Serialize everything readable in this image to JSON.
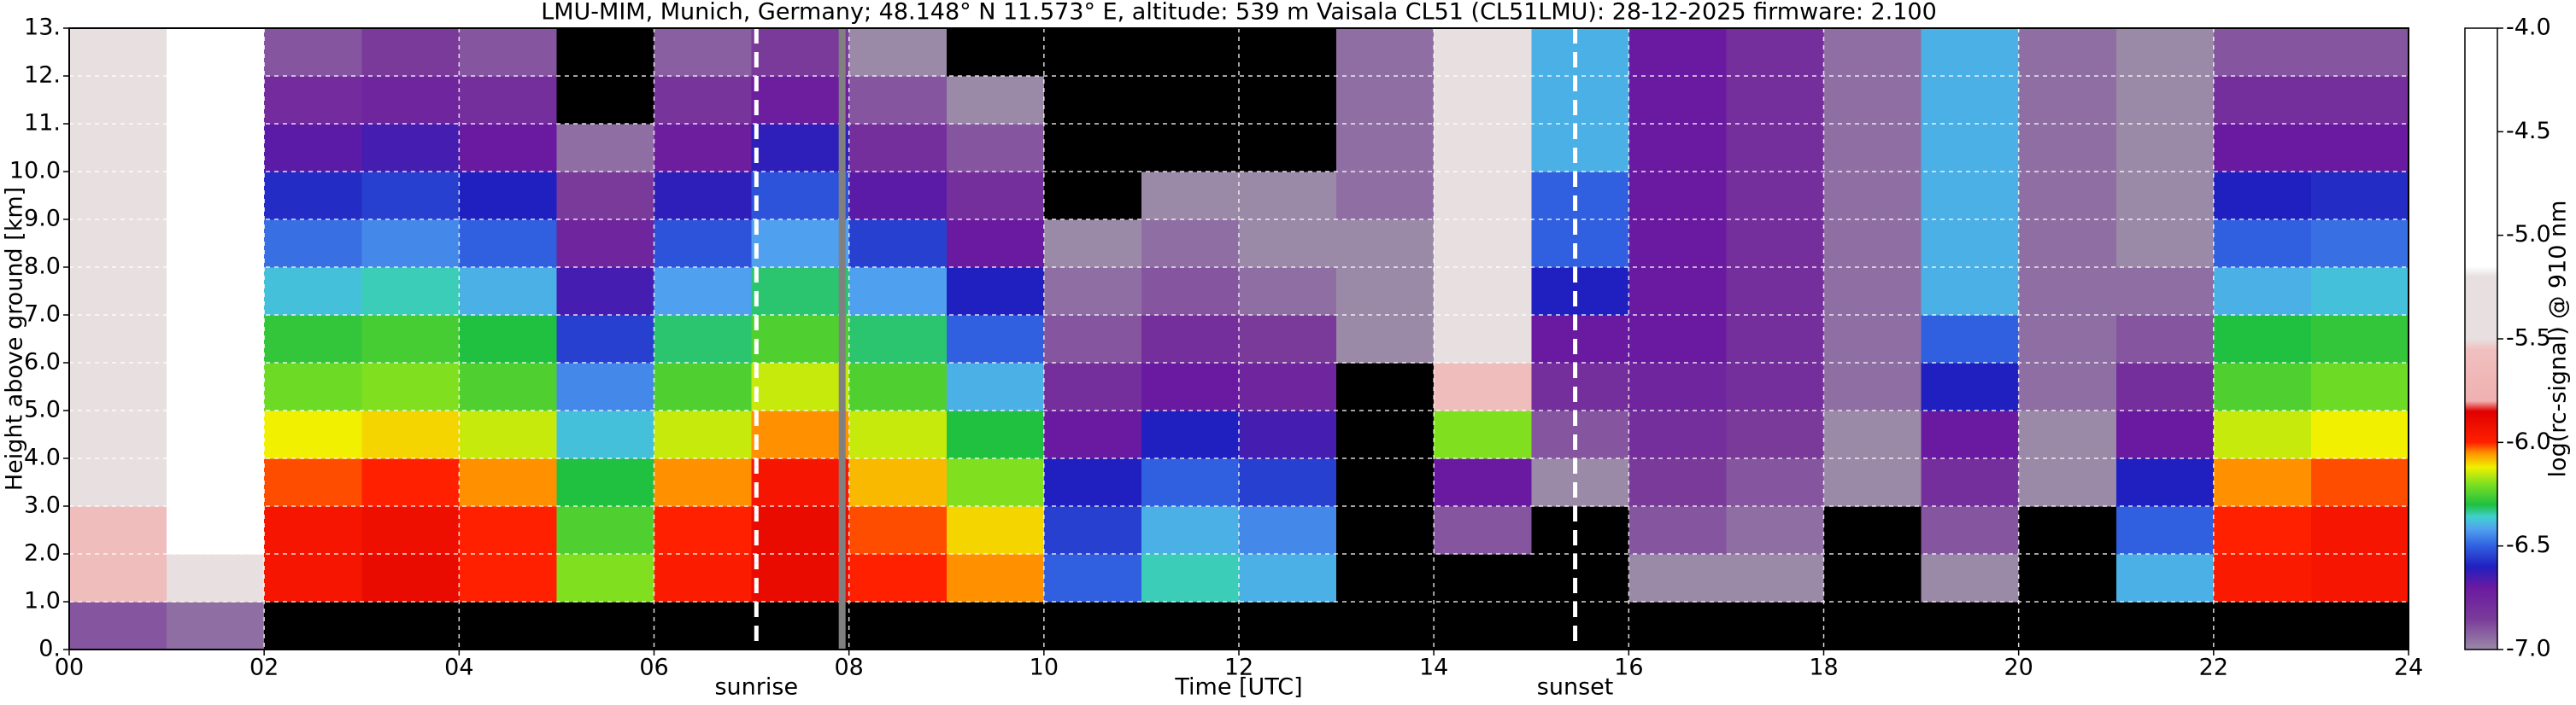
{
  "chart_data": {
    "type": "heatmap",
    "title": "LMU-MIM, Munich, Germany; 48.148° N 11.573° E, altitude: 539 m    Vaisala CL51 (CL51LMU): 28-12-2025    firmware: 2.100",
    "x_label": "Time [UTC]",
    "y_label": "Height above ground [km]",
    "colorbar_label": "log(rc-signal) @ 910 nm",
    "xlim": [
      0,
      24
    ],
    "ylim": [
      0,
      13
    ],
    "xticks": [
      {
        "value": 0,
        "label": "00"
      },
      {
        "value": 2,
        "label": "02"
      },
      {
        "value": 4,
        "label": "04"
      },
      {
        "value": 6,
        "label": "06"
      },
      {
        "value": 8,
        "label": "08"
      },
      10,
      12,
      14,
      16,
      18,
      20,
      22,
      24
    ],
    "yticks": [
      {
        "value": 0,
        "label": "0."
      },
      {
        "value": 1,
        "label": "1.0"
      },
      {
        "value": 2,
        "label": "2.0"
      },
      {
        "value": 3,
        "label": "3.0"
      },
      {
        "value": 4,
        "label": "4.0"
      },
      {
        "value": 5,
        "label": "5.0"
      },
      {
        "value": 6,
        "label": "6.0"
      },
      {
        "value": 7,
        "label": "7.0"
      },
      {
        "value": 8,
        "label": "8.0"
      },
      {
        "value": 9,
        "label": "9.0"
      },
      {
        "value": 10,
        "label": "10.0"
      },
      {
        "value": 11,
        "label": "11."
      },
      {
        "value": 12,
        "label": "12."
      },
      {
        "value": 13,
        "label": "13."
      }
    ],
    "grid": true,
    "grid_color": "#ffffff",
    "clim": [
      -7,
      -4
    ],
    "cticks": [
      {
        "value": -4,
        "label": "-4.0"
      },
      -4.5,
      {
        "value": -5,
        "label": "-5.0"
      },
      -5.5,
      {
        "value": -6,
        "label": "-6.0"
      },
      -6.5,
      {
        "value": -7,
        "label": "-7.0"
      }
    ],
    "under_color": "#000000",
    "colormap": [
      {
        "value": -7,
        "color": "#9a8aa8"
      },
      {
        "value": -6.85,
        "color": "#7a3a9a"
      },
      {
        "value": -6.7,
        "color": "#6a1aa0"
      },
      {
        "value": -6.6,
        "color": "#2020c0"
      },
      {
        "value": -6.5,
        "color": "#3060e0"
      },
      {
        "value": -6.42,
        "color": "#50a0f0"
      },
      {
        "value": -6.36,
        "color": "#40d0d0"
      },
      {
        "value": -6.3,
        "color": "#20c040"
      },
      {
        "value": -6.2,
        "color": "#80e020"
      },
      {
        "value": -6.12,
        "color": "#f0f000"
      },
      {
        "value": -6.05,
        "color": "#ff9000"
      },
      {
        "value": -6,
        "color": "#ff2000"
      },
      {
        "value": -5.85,
        "color": "#e00000"
      },
      {
        "value": -5.8,
        "color": "#f0b0b0"
      },
      {
        "value": -5.55,
        "color": "#f0c0c0"
      },
      {
        "value": -5.5,
        "color": "#e8e0e0"
      },
      {
        "value": -5.2,
        "color": "#e8e0e0"
      },
      {
        "value": -5.15,
        "color": "#ffffff"
      },
      {
        "value": -4,
        "color": "#ffffff"
      }
    ],
    "xbins": [
      0,
      1,
      2,
      3,
      4,
      5,
      6,
      7,
      8,
      9,
      10,
      11,
      12,
      13,
      14,
      15,
      16,
      17,
      18,
      19,
      20,
      21,
      22,
      23,
      24
    ],
    "ybins": [
      0,
      1,
      2,
      3,
      4,
      5,
      6,
      7,
      8,
      9,
      10,
      11,
      12,
      13
    ],
    "values": [
      [
        -6.9,
        -5.6,
        -5.6,
        -5.5,
        -5.5,
        -5.5,
        -5.4,
        -5.4,
        -5.4,
        -5.4,
        -5.3,
        -5.3,
        -5.3
      ],
      [
        -6.95,
        -5.2,
        -5.1,
        -5.1,
        -5.1,
        -5.0,
        -5.0,
        -5.0,
        -5.0,
        -5.0,
        -5.0,
        -5.0,
        -5.0
      ],
      [
        -7.3,
        -5.95,
        -5.95,
        -6.02,
        -6.12,
        -6.22,
        -6.28,
        -6.38,
        -6.48,
        -6.58,
        -6.68,
        -6.78,
        -6.9
      ],
      [
        -7.3,
        -5.9,
        -5.92,
        -6.0,
        -6.1,
        -6.2,
        -6.26,
        -6.35,
        -6.45,
        -6.55,
        -6.65,
        -6.75,
        -6.85
      ],
      [
        -7.3,
        -6.0,
        -6.0,
        -6.05,
        -6.15,
        -6.25,
        -6.3,
        -6.4,
        -6.5,
        -6.6,
        -6.7,
        -6.8,
        -6.9
      ],
      [
        -7.3,
        -6.2,
        -6.25,
        -6.3,
        -6.38,
        -6.45,
        -6.55,
        -6.65,
        -6.75,
        -6.85,
        -6.95,
        -7.05,
        -7.1
      ],
      [
        -7.3,
        -5.98,
        -6.0,
        -6.05,
        -6.15,
        -6.25,
        -6.32,
        -6.42,
        -6.52,
        -6.62,
        -6.72,
        -6.82,
        -6.92
      ],
      [
        -7.2,
        -5.9,
        -5.9,
        -5.95,
        -6.05,
        -6.15,
        -6.25,
        -6.32,
        -6.42,
        -6.52,
        -6.62,
        -6.72,
        -6.85
      ],
      [
        -7.3,
        -6.0,
        -6.02,
        -6.08,
        -6.15,
        -6.25,
        -6.32,
        -6.42,
        -6.55,
        -6.68,
        -6.8,
        -6.9,
        -7.0
      ],
      [
        -7.3,
        -6.05,
        -6.1,
        -6.2,
        -6.3,
        -6.4,
        -6.5,
        -6.6,
        -6.7,
        -6.8,
        -6.9,
        -7.0,
        -7.05
      ],
      [
        -7.3,
        -6.5,
        -6.55,
        -6.6,
        -6.7,
        -6.8,
        -6.9,
        -6.95,
        -7.0,
        -7.05,
        -7.05,
        -7.05,
        -7.05
      ],
      [
        -7.3,
        -6.35,
        -6.4,
        -6.5,
        -6.6,
        -6.7,
        -6.8,
        -6.9,
        -6.95,
        -7.0,
        -7.05,
        -7.05,
        -7.05
      ],
      [
        -7.3,
        -6.4,
        -6.45,
        -6.55,
        -6.65,
        -6.75,
        -6.85,
        -6.95,
        -7.0,
        -7.0,
        -7.05,
        -7.05,
        -7.05
      ],
      [
        -7.1,
        -7.2,
        -7.15,
        -7.1,
        -7.05,
        -7.05,
        -7.0,
        -7.0,
        -7.0,
        -6.95,
        -6.95,
        -6.95,
        -6.95
      ],
      [
        -7.2,
        -7.1,
        -6.9,
        -6.7,
        -6.2,
        -5.6,
        -5.4,
        -5.3,
        -5.3,
        -5.2,
        -5.2,
        -5.2,
        -5.2
      ],
      [
        -7.2,
        -7.15,
        -7.1,
        -7.0,
        -6.9,
        -6.8,
        -6.7,
        -6.6,
        -6.5,
        -6.5,
        -6.4,
        -6.4,
        -6.4
      ],
      [
        -7.3,
        -7.0,
        -6.9,
        -6.85,
        -6.8,
        -6.75,
        -6.7,
        -6.7,
        -6.7,
        -6.7,
        -6.7,
        -6.7,
        -6.7
      ],
      [
        -7.3,
        -7.0,
        -6.95,
        -6.9,
        -6.85,
        -6.8,
        -6.8,
        -6.8,
        -6.8,
        -6.8,
        -6.8,
        -6.8,
        -6.8
      ],
      [
        -7.3,
        -7.1,
        -7.05,
        -7.0,
        -7.0,
        -6.95,
        -6.95,
        -6.95,
        -6.95,
        -6.95,
        -6.95,
        -6.95,
        -6.95
      ],
      [
        -7.3,
        -7.0,
        -6.9,
        -6.8,
        -6.7,
        -6.6,
        -6.5,
        -6.4,
        -6.4,
        -6.4,
        -6.4,
        -6.4,
        -6.4
      ],
      [
        -7.3,
        -7.1,
        -7.05,
        -7.0,
        -7.0,
        -6.95,
        -6.95,
        -6.95,
        -6.95,
        -6.95,
        -6.95,
        -6.95,
        -6.95
      ],
      [
        -7.3,
        -6.4,
        -6.5,
        -6.6,
        -6.7,
        -6.8,
        -6.9,
        -6.95,
        -7.0,
        -7.0,
        -7.0,
        -7.0,
        -7.0
      ],
      [
        -7.3,
        -5.97,
        -6.0,
        -6.05,
        -6.15,
        -6.25,
        -6.3,
        -6.4,
        -6.5,
        -6.6,
        -6.7,
        -6.8,
        -6.9
      ],
      [
        -7.3,
        -5.95,
        -5.95,
        -6.02,
        -6.12,
        -6.22,
        -6.28,
        -6.38,
        -6.48,
        -6.58,
        -6.7,
        -6.8,
        -6.9
      ]
    ],
    "annotations": [
      {
        "x": 7.05,
        "label": "sunrise",
        "color": "#ffffff"
      },
      {
        "x": 15.45,
        "label": "sunset",
        "color": "#ffffff"
      }
    ],
    "vlines": [
      {
        "x": 7.93,
        "color": "#808080"
      }
    ]
  }
}
